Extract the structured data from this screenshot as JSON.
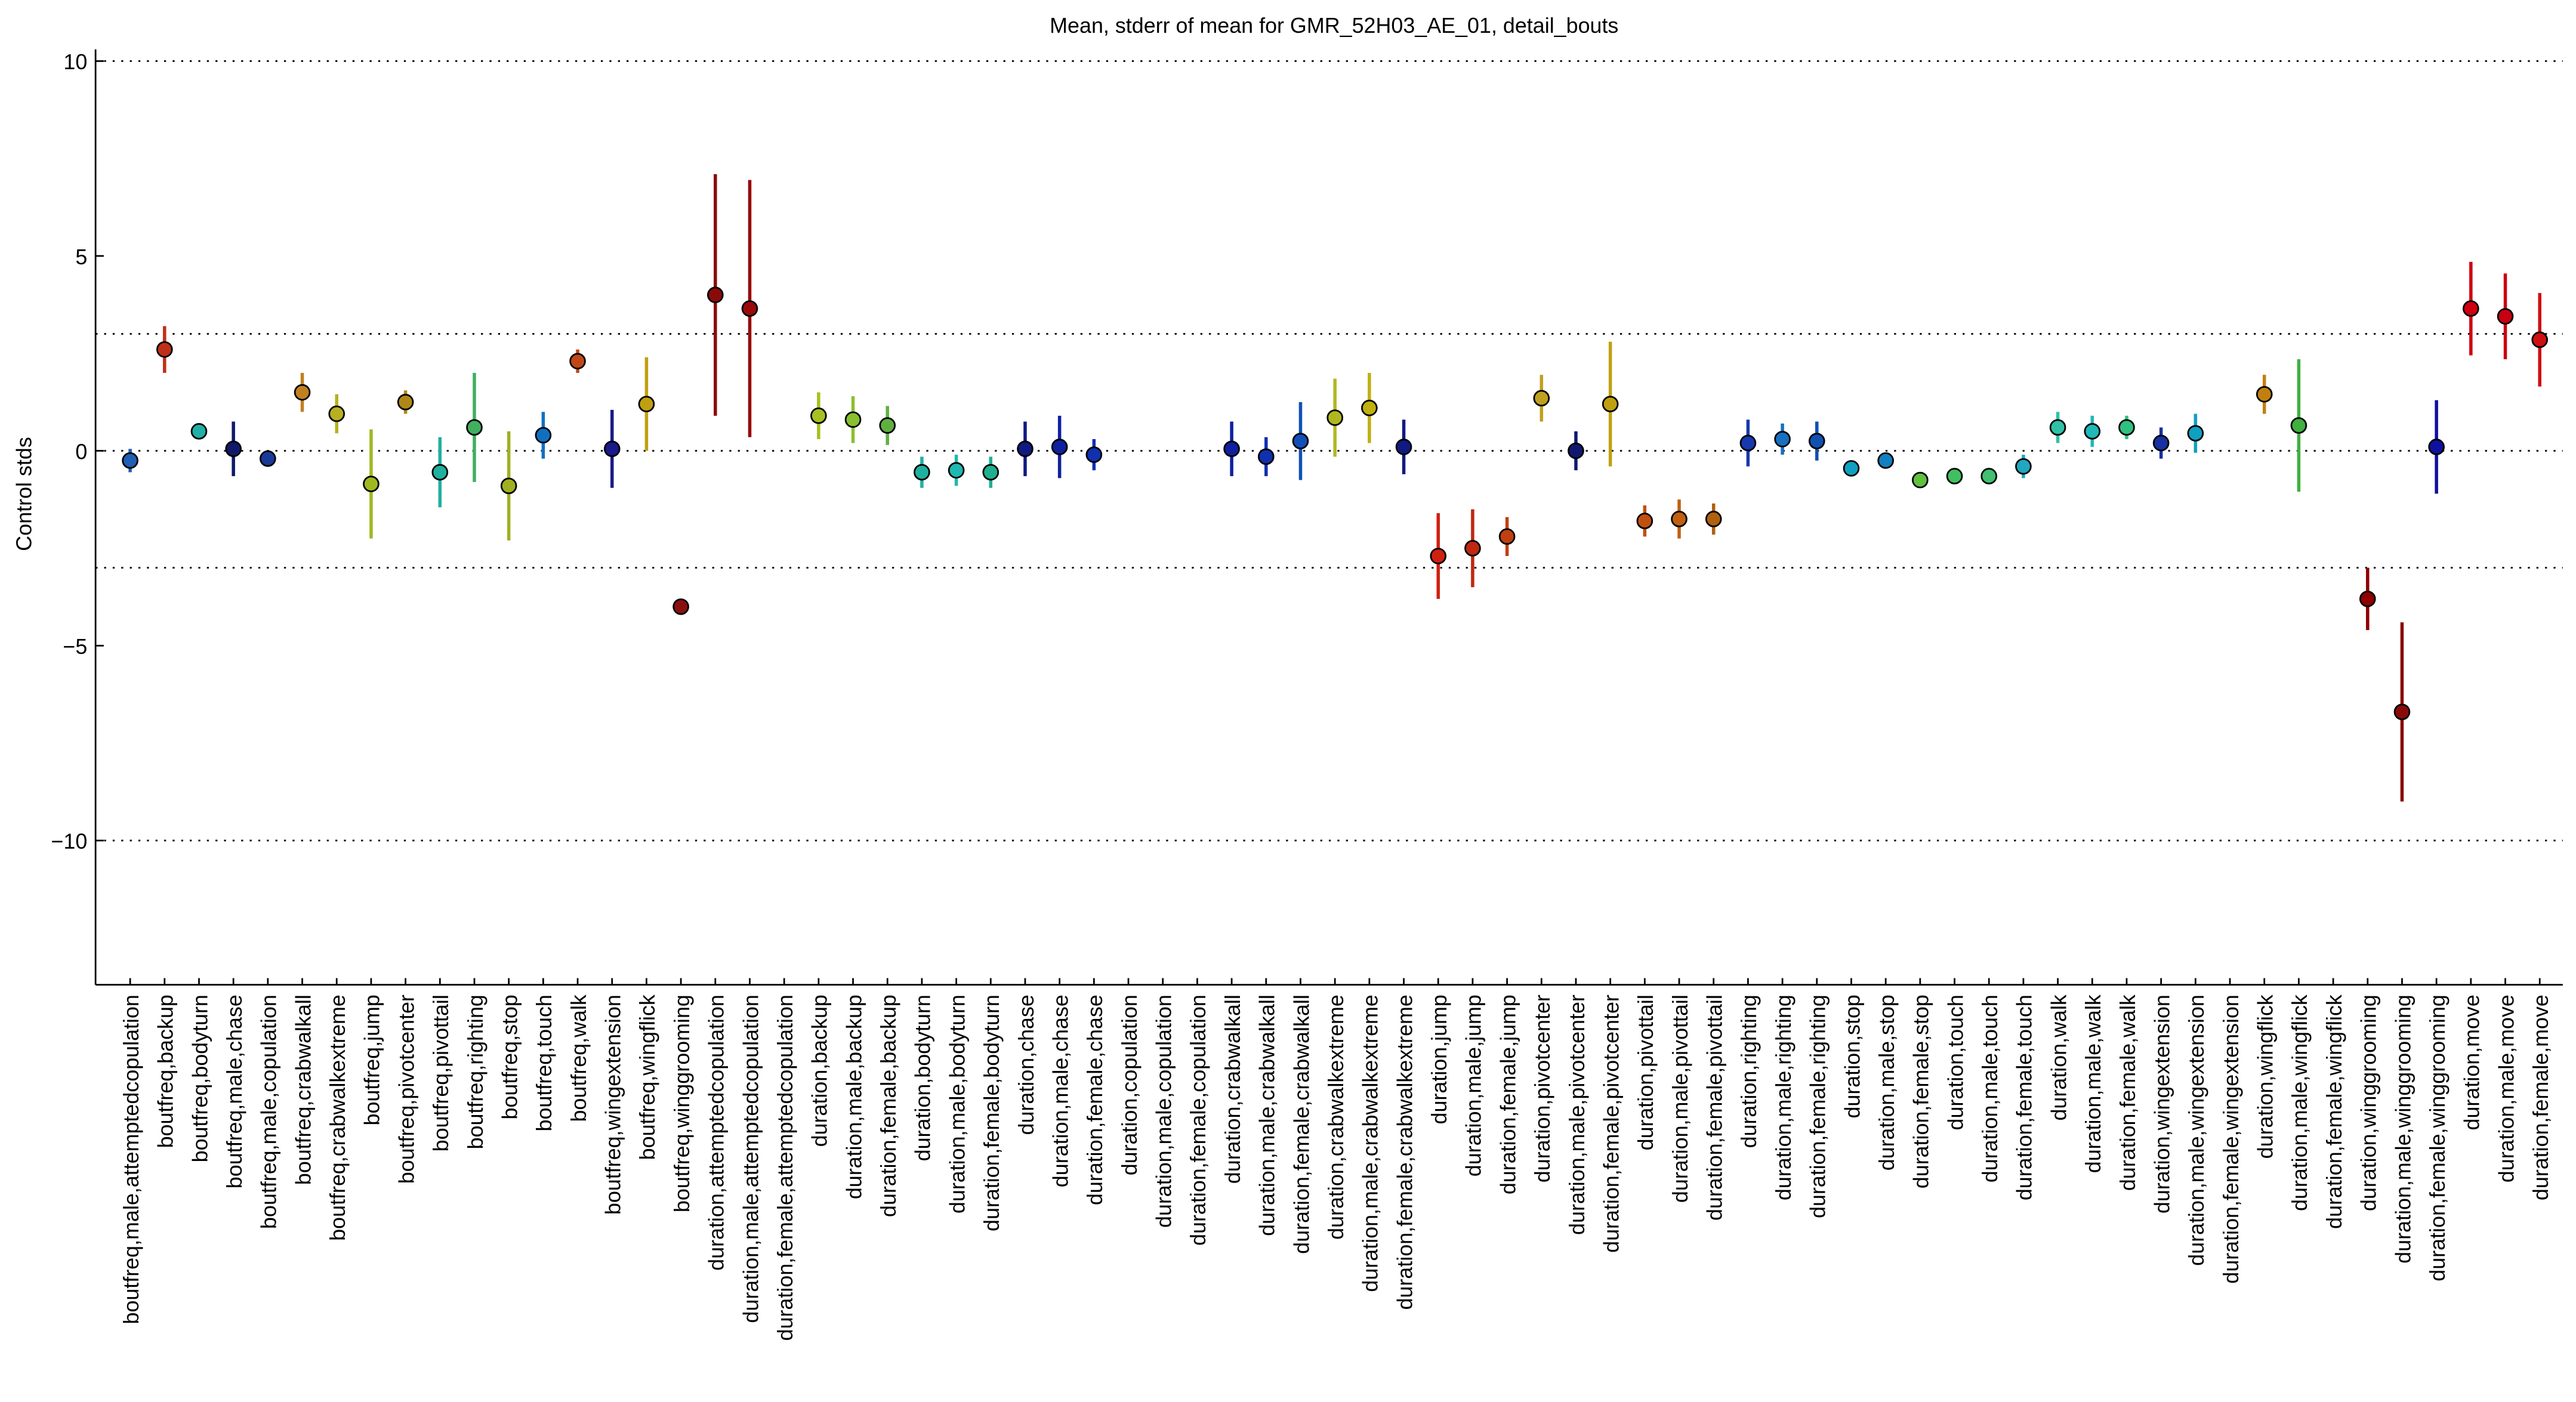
{
  "chart_data": {
    "type": "errorbar",
    "title": "Mean, stderr of mean for GMR_52H03_AE_01, detail_bouts",
    "ylabel": "Control stds",
    "ylim": [
      -13.7,
      10.3
    ],
    "yticks": [
      {
        "value": -10,
        "label": "−10"
      },
      {
        "value": -5,
        "label": "−5"
      },
      0,
      5,
      10
    ],
    "reference_lines": [
      -10,
      -3,
      0,
      3,
      10
    ],
    "categories": [
      "boutfreq,male,attemptedcopulation",
      "boutfreq,backup",
      "boutfreq,bodyturn",
      "boutfreq,male,chase",
      "boutfreq,male,copulation",
      "boutfreq,crabwalkall",
      "boutfreq,crabwalkextreme",
      "boutfreq,jump",
      "boutfreq,pivotcenter",
      "boutfreq,pivottail",
      "boutfreq,righting",
      "boutfreq,stop",
      "boutfreq,touch",
      "boutfreq,walk",
      "boutfreq,wingextension",
      "boutfreq,wingflick",
      "boutfreq,winggrooming",
      "duration,attemptedcopulation",
      "duration,male,attemptedcopulation",
      "duration,female,attemptedcopulation",
      "duration,backup",
      "duration,male,backup",
      "duration,female,backup",
      "duration,bodyturn",
      "duration,male,bodyturn",
      "duration,female,bodyturn",
      "duration,chase",
      "duration,male,chase",
      "duration,female,chase",
      "duration,copulation",
      "duration,male,copulation",
      "duration,female,copulation",
      "duration,crabwalkall",
      "duration,male,crabwalkall",
      "duration,female,crabwalkall",
      "duration,crabwalkextreme",
      "duration,male,crabwalkextreme",
      "duration,female,crabwalkextreme",
      "duration,jump",
      "duration,male,jump",
      "duration,female,jump",
      "duration,pivotcenter",
      "duration,male,pivotcenter",
      "duration,female,pivotcenter",
      "duration,pivottail",
      "duration,male,pivottail",
      "duration,female,pivottail",
      "duration,righting",
      "duration,male,righting",
      "duration,female,righting",
      "duration,stop",
      "duration,male,stop",
      "duration,female,stop",
      "duration,touch",
      "duration,male,touch",
      "duration,female,touch",
      "duration,walk",
      "duration,male,walk",
      "duration,female,walk",
      "duration,wingextension",
      "duration,male,wingextension",
      "duration,female,wingextension",
      "duration,wingflick",
      "duration,male,wingflick",
      "duration,female,wingflick",
      "duration,winggrooming",
      "duration,male,winggrooming",
      "duration,female,winggrooming",
      "duration,move",
      "duration,male,move",
      "duration,female,move"
    ],
    "values": [
      -0.25,
      2.6,
      0.5,
      0.05,
      -0.2,
      1.5,
      0.95,
      -0.85,
      1.25,
      -0.55,
      0.6,
      -0.9,
      0.4,
      2.3,
      0.05,
      1.2,
      -4.0,
      4.0,
      3.65,
      null,
      0.9,
      0.8,
      0.65,
      -0.55,
      -0.5,
      -0.55,
      0.05,
      0.1,
      -0.1,
      null,
      null,
      null,
      0.05,
      -0.15,
      0.25,
      0.85,
      1.1,
      0.1,
      -2.7,
      -2.5,
      -2.2,
      1.35,
      0.0,
      1.2,
      -1.8,
      -1.75,
      -1.75,
      0.2,
      0.3,
      0.25,
      -0.45,
      -0.25,
      -0.75,
      -0.65,
      -0.65,
      -0.4,
      0.6,
      0.5,
      0.6,
      0.2,
      0.45,
      null,
      1.45,
      0.65,
      null,
      -3.8,
      -6.7,
      0.1,
      3.65,
      3.45,
      2.85
    ],
    "errors": [
      0.3,
      0.6,
      0.2,
      0.7,
      0.2,
      0.5,
      0.5,
      1.4,
      0.3,
      0.9,
      1.4,
      1.4,
      0.6,
      0.3,
      1.0,
      1.2,
      0.2,
      3.1,
      3.3,
      null,
      0.6,
      0.6,
      0.5,
      0.4,
      0.4,
      0.4,
      0.7,
      0.8,
      0.4,
      null,
      null,
      null,
      0.7,
      0.5,
      1.0,
      1.0,
      0.9,
      0.7,
      1.1,
      1.0,
      0.5,
      0.6,
      0.5,
      1.6,
      0.4,
      0.5,
      0.4,
      0.6,
      0.4,
      0.5,
      0.1,
      0.1,
      0.15,
      0.1,
      0.1,
      0.3,
      0.4,
      0.4,
      0.3,
      0.4,
      0.5,
      null,
      0.5,
      1.7,
      null,
      0.8,
      2.3,
      1.2,
      1.2,
      1.1,
      1.2
    ],
    "colors": [
      "#1f5fb4",
      "#c03018",
      "#20b0a8",
      "#101a6a",
      "#1a3a9a",
      "#c08020",
      "#b8b020",
      "#a0b820",
      "#b08818",
      "#20b0a0",
      "#40b060",
      "#a0b020",
      "#1070c0",
      "#c04818",
      "#1a1a8a",
      "#c0a010",
      "#8a1010",
      "#8a0a0a",
      "#9a0a0a",
      "#909090",
      "#a8c020",
      "#88c030",
      "#60b040",
      "#20b0a0",
      "#20b8b0",
      "#20b090",
      "#101a80",
      "#1020a0",
      "#1030b0",
      "#909090",
      "#909090",
      "#909090",
      "#1020a0",
      "#1030b0",
      "#1050b8",
      "#b0b820",
      "#c0b010",
      "#101a80",
      "#d02010",
      "#c02810",
      "#c04010",
      "#c0a020",
      "#101870",
      "#c0a010",
      "#c05010",
      "#c06010",
      "#b06010",
      "#1838b0",
      "#1870c0",
      "#1050b0",
      "#10a0c0",
      "#1080c0",
      "#60c040",
      "#40c060",
      "#40c070",
      "#20a8c0",
      "#30c0a8",
      "#20b8b8",
      "#30c080",
      "#1830a0",
      "#10a0c0",
      "#909090",
      "#c08010",
      "#40b040",
      "#909090",
      "#900000",
      "#8a0a0a",
      "#1010a0",
      "#d00010",
      "#c80010",
      "#d01010"
    ]
  }
}
